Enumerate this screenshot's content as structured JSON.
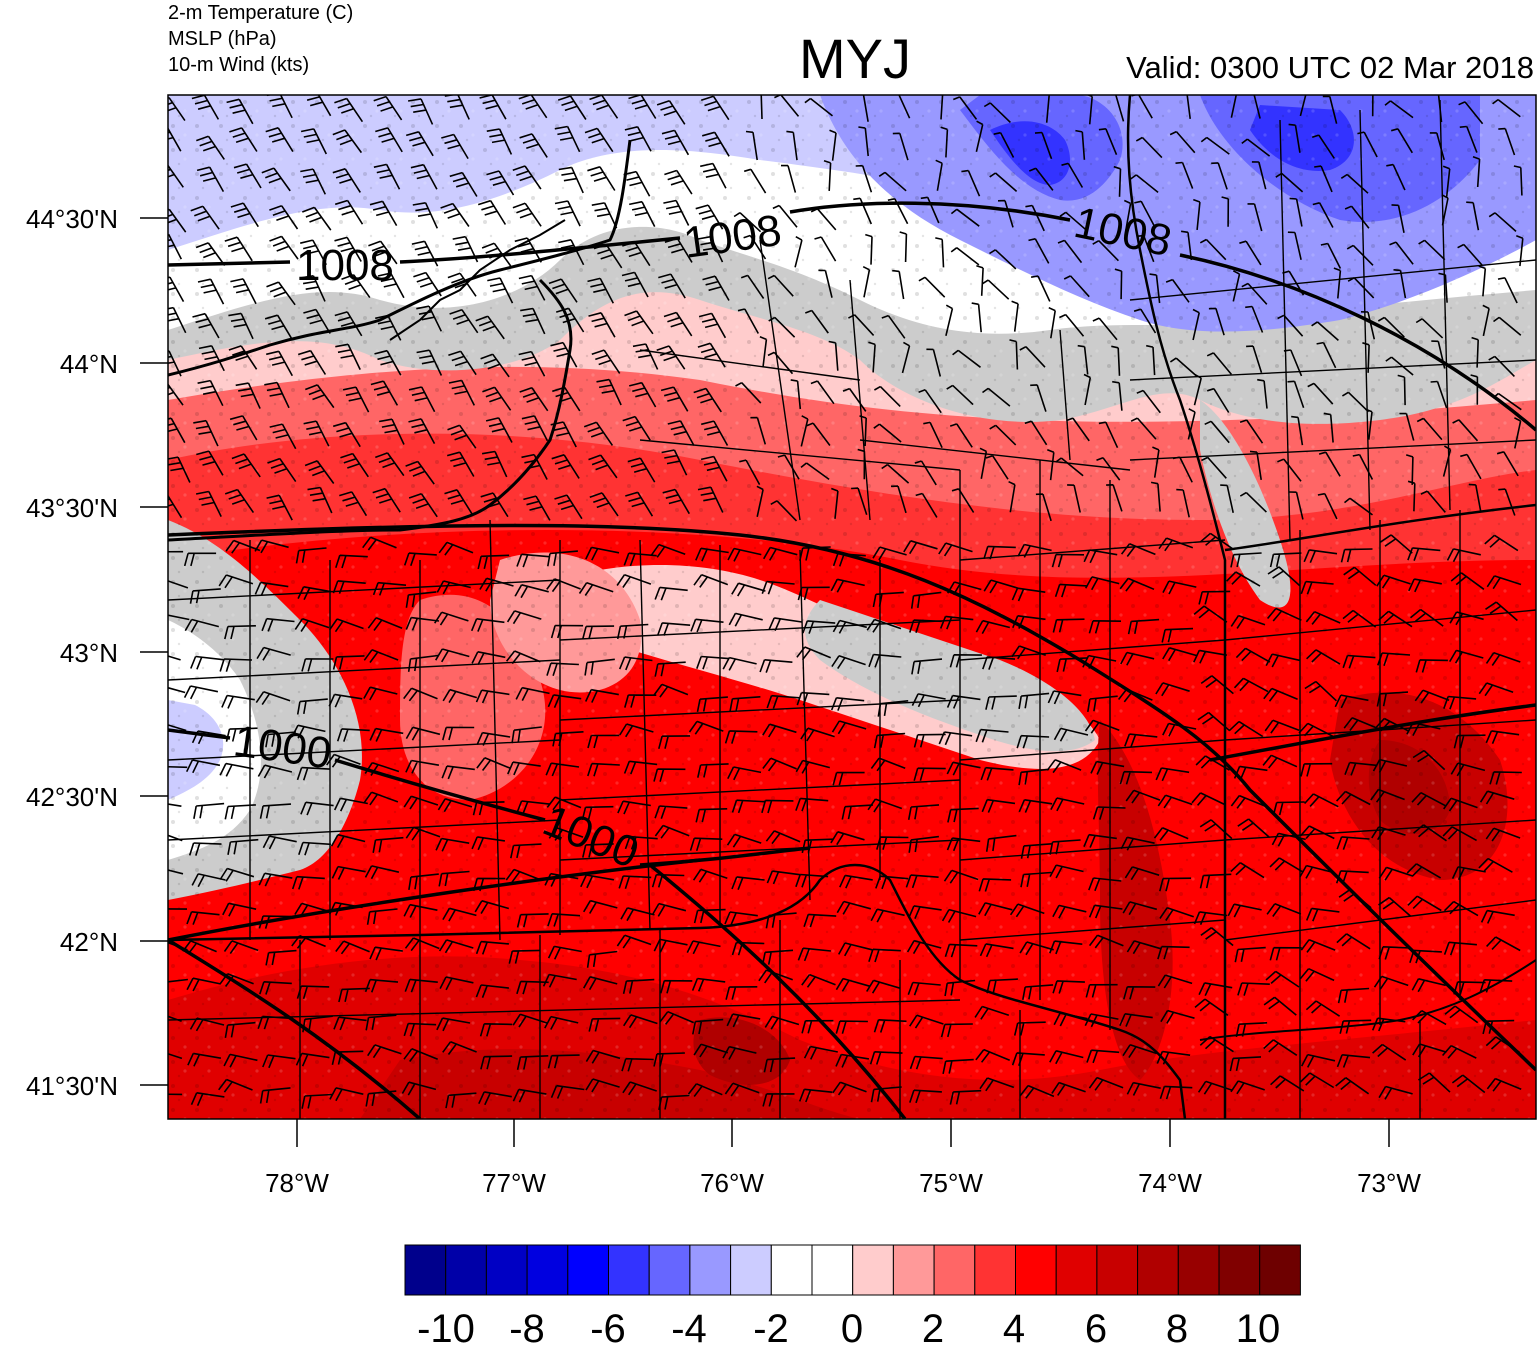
{
  "header": {
    "fields": [
      "2-m Temperature (C)",
      "MSLP (hPa)",
      "10-m Wind (kts)"
    ],
    "title": "MYJ",
    "valid": "Valid: 0300 UTC 02 Mar 2018"
  },
  "map": {
    "lat_ticks": [
      "44°30'N",
      "44°N",
      "43°30'N",
      "43°N",
      "42°30'N",
      "42°N",
      "41°30'N"
    ],
    "lon_ticks": [
      "78°W",
      "77°W",
      "76°W",
      "75°W",
      "74°W",
      "73°W"
    ],
    "isobar_labels": [
      "1008",
      "1008",
      "1008",
      "1000",
      "1000"
    ]
  },
  "colorbar": {
    "colors": [
      "#00008c",
      "#0000a8",
      "#0000c4",
      "#0000e0",
      "#0000ff",
      "#3333ff",
      "#6666ff",
      "#9999ff",
      "#ccccff",
      "#ffffff",
      "#ffffff",
      "#ffcccc",
      "#ff9999",
      "#ff6666",
      "#ff3333",
      "#ff0000",
      "#e00000",
      "#c80000",
      "#b00000",
      "#980000",
      "#800000",
      "#6e0000"
    ],
    "labels": [
      "-10",
      "-8",
      "-6",
      "-4",
      "-2",
      "0",
      "2",
      "4",
      "6",
      "8",
      "10"
    ]
  }
}
